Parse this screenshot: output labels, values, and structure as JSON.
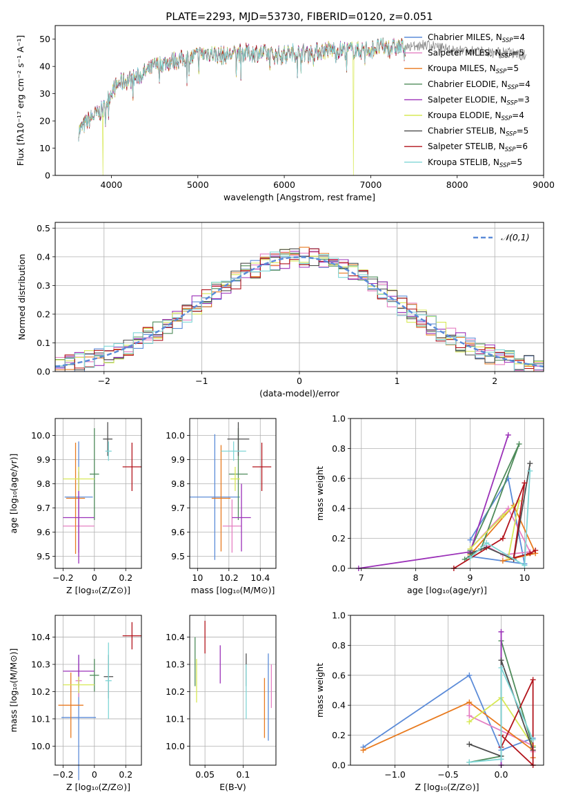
{
  "title": "PLATE=2293, MJD=53730, FIBERID=0120, z=0.051",
  "colors": {
    "chabrier_miles": "#5b8bd8",
    "salpeter_miles": "#e57fc2",
    "kroupa_miles": "#e87a1e",
    "chabrier_elodie": "#4e8b5a",
    "salpeter_elodie": "#9b30b8",
    "kroupa_elodie": "#d7e855",
    "chabrier_stelib": "#4d4d4d",
    "salpeter_stelib": "#b2131b",
    "kroupa_stelib": "#7fd6d6"
  },
  "chart_data": [
    {
      "id": "spectrum",
      "type": "line",
      "title": "PLATE=2293, MJD=53730, FIBERID=0120, z=0.051",
      "xlabel": "wavelength [Angstrom, rest frame]",
      "ylabel": "Flux [fλ10⁻¹⁷ erg cm⁻² s⁻¹ A⁻¹]",
      "xlim": [
        3350,
        9000
      ],
      "ylim": [
        0,
        55
      ],
      "xticks": [
        4000,
        5000,
        6000,
        7000,
        8000,
        9000
      ],
      "yticks": [
        0,
        10,
        20,
        30,
        40,
        50
      ],
      "legend_position": "right",
      "series": [
        {
          "name": "Chabrier MILES, N_SSP=4",
          "label": "Chabrier MILES, N",
          "sub": "SSP",
          "suffix": "=4",
          "color": "#5b8bd8"
        },
        {
          "name": "Salpeter MILES, N_SSP=5",
          "label": "Salpeter MILES, N",
          "sub": "SSP",
          "suffix": "=5",
          "color": "#e57fc2"
        },
        {
          "name": "Kroupa MILES, N_SSP=5",
          "label": "Kroupa MILES, N",
          "sub": "SSP",
          "suffix": "=5",
          "color": "#e87a1e"
        },
        {
          "name": "Chabrier ELODIE, N_SSP=4",
          "label": "Chabrier ELODIE, N",
          "sub": "SSP",
          "suffix": "=4",
          "color": "#4e8b5a"
        },
        {
          "name": "Salpeter ELODIE, N_SSP=3",
          "label": "Salpeter ELODIE, N",
          "sub": "SSP",
          "suffix": "=3",
          "color": "#9b30b8"
        },
        {
          "name": "Kroupa ELODIE, N_SSP=4",
          "label": "Kroupa ELODIE, N",
          "sub": "SSP",
          "suffix": "=4",
          "color": "#d7e855"
        },
        {
          "name": "Chabrier STELIB, N_SSP=5",
          "label": "Chabrier STELIB, N",
          "sub": "SSP",
          "suffix": "=5",
          "color": "#4d4d4d"
        },
        {
          "name": "Salpeter STELIB, N_SSP=6",
          "label": "Salpeter STELIB, N",
          "sub": "SSP",
          "suffix": "=6",
          "color": "#b2131b"
        },
        {
          "name": "Kroupa STELIB, N_SSP=5",
          "label": "Kroupa STELIB, N",
          "sub": "SSP",
          "suffix": "=5",
          "color": "#7fd6d6"
        }
      ],
      "continuum": {
        "x": [
          3620,
          3700,
          3800,
          3900,
          3950,
          4000,
          4100,
          4200,
          4300,
          4400,
          4500,
          4700,
          4900,
          5100,
          5300,
          5500,
          5700,
          5900,
          6100,
          6300,
          6500,
          6700,
          6900,
          7100,
          7300,
          7400
        ],
        "y": [
          16,
          19,
          22,
          24,
          27,
          31,
          34,
          35,
          36,
          38,
          40,
          42,
          43,
          45,
          44,
          45,
          45,
          44,
          45,
          45,
          46,
          46,
          46,
          47,
          47,
          47
        ]
      },
      "continuum_red": {
        "x": [
          7400,
          7600,
          7800,
          8000,
          8200,
          8400,
          8600,
          8800
        ],
        "y": [
          47,
          48,
          47,
          46,
          46,
          45,
          45,
          44
        ]
      },
      "dropouts": [
        {
          "x": 3900,
          "series": 5
        },
        {
          "x": 6800,
          "series": 5
        },
        {
          "x": 7420,
          "series": 7
        }
      ]
    },
    {
      "id": "residuals",
      "type": "histogram",
      "xlabel": "(data-model)/error",
      "ylabel": "Normed distribution",
      "xlim": [
        -2.5,
        2.5
      ],
      "ylim": [
        0,
        0.52
      ],
      "xticks": [
        -2,
        -1,
        0,
        1,
        2
      ],
      "yticks": [
        0.0,
        0.1,
        0.2,
        0.3,
        0.4,
        0.5
      ],
      "bin_width": 0.1,
      "reference": {
        "name": "𝒩(0,1)",
        "color": "#5b8bd8",
        "style": "dashed"
      },
      "legend_position": "top-right"
    },
    {
      "id": "age_vs_Z",
      "type": "scatter",
      "xlabel": "Z [log₁₀(Z/Z⊙)]",
      "ylabel": "age  [log₁₀(age/yr)]",
      "xlim": [
        -0.25,
        0.3
      ],
      "ylim": [
        9.45,
        10.07
      ],
      "xticks": [
        -0.2,
        0.0,
        0.2
      ],
      "yticks": [
        9.5,
        9.6,
        9.7,
        9.8,
        9.9,
        10.0
      ],
      "points": [
        {
          "s": 0,
          "x": -0.1,
          "y": 9.745,
          "xerr": 0.09,
          "yerr": 0.23
        },
        {
          "s": 1,
          "x": -0.1,
          "y": 9.625,
          "xerr": 0.1,
          "yerr": 0.11
        },
        {
          "s": 2,
          "x": -0.12,
          "y": 9.74,
          "xerr": 0.06,
          "yerr": 0.23
        },
        {
          "s": 3,
          "x": 0.0,
          "y": 9.84,
          "xerr": 0.03,
          "yerr": 0.19
        },
        {
          "s": 4,
          "x": -0.1,
          "y": 9.66,
          "xerr": 0.1,
          "yerr": 0.19
        },
        {
          "s": 5,
          "x": -0.1,
          "y": 9.82,
          "xerr": 0.1,
          "yerr": 0.05
        },
        {
          "s": 6,
          "x": 0.085,
          "y": 9.985,
          "xerr": 0.03,
          "yerr": 0.07
        },
        {
          "s": 7,
          "x": 0.24,
          "y": 9.87,
          "xerr": 0.06,
          "yerr": 0.1
        },
        {
          "s": 8,
          "x": 0.09,
          "y": 9.935,
          "xerr": 0.02,
          "yerr": 0.04
        }
      ]
    },
    {
      "id": "age_vs_mass",
      "type": "scatter",
      "xlabel": "mass [log₁₀(M/M⊙)]",
      "ylabel": "",
      "xlim": [
        9.95,
        10.5
      ],
      "ylim": [
        9.45,
        10.07
      ],
      "xticks": [
        10.0,
        10.2,
        10.4
      ],
      "yticks": [
        9.5,
        9.6,
        9.7,
        9.8,
        9.9,
        10.0
      ],
      "points": [
        {
          "s": 0,
          "x": 10.11,
          "y": 9.745,
          "xerr": 0.16,
          "yerr": 0.26
        },
        {
          "s": 1,
          "x": 10.22,
          "y": 9.625,
          "xerr": 0.06,
          "yerr": 0.11
        },
        {
          "s": 2,
          "x": 10.15,
          "y": 9.74,
          "xerr": 0.06,
          "yerr": 0.22
        },
        {
          "s": 3,
          "x": 10.26,
          "y": 9.84,
          "xerr": 0.06,
          "yerr": 0.19
        },
        {
          "s": 4,
          "x": 10.28,
          "y": 9.66,
          "xerr": 0.06,
          "yerr": 0.14
        },
        {
          "s": 5,
          "x": 10.24,
          "y": 9.82,
          "xerr": 0.03,
          "yerr": 0.05
        },
        {
          "s": 6,
          "x": 10.26,
          "y": 9.985,
          "xerr": 0.07,
          "yerr": 0.07
        },
        {
          "s": 7,
          "x": 10.41,
          "y": 9.87,
          "xerr": 0.06,
          "yerr": 0.1
        },
        {
          "s": 8,
          "x": 10.23,
          "y": 9.935,
          "xerr": 0.08,
          "yerr": 0.04
        }
      ]
    },
    {
      "id": "weight_vs_age",
      "type": "line",
      "xlabel": "age  [log₁₀(age/yr)]",
      "ylabel": "mass weight",
      "xlim": [
        6.8,
        10.35
      ],
      "ylim": [
        0,
        1.0
      ],
      "xticks": [
        7,
        8,
        9,
        10
      ],
      "yticks": [
        0.0,
        0.2,
        0.4,
        0.6,
        0.8,
        1.0
      ],
      "series": [
        {
          "s": 0,
          "x": [
            9.0,
            9.7,
            10.0,
            9.0
          ],
          "y": [
            0.19,
            0.6,
            0.03,
            0.08
          ]
        },
        {
          "s": 1,
          "x": [
            9.0,
            9.7,
            10.1,
            9.6,
            9.3
          ],
          "y": [
            0.13,
            0.4,
            0.11,
            0.09,
            0.15
          ]
        },
        {
          "s": 2,
          "x": [
            9.0,
            9.8,
            10.2,
            9.6
          ],
          "y": [
            0.09,
            0.42,
            0.1,
            0.05
          ]
        },
        {
          "s": 3,
          "x": [
            8.9,
            9.2,
            9.9,
            9.0
          ],
          "y": [
            0.06,
            0.13,
            0.83,
            0.12
          ]
        },
        {
          "s": 4,
          "x": [
            6.95,
            9.0,
            9.7
          ],
          "y": [
            0.0,
            0.11,
            0.89
          ]
        },
        {
          "s": 5,
          "x": [
            9.0,
            9.6,
            9.9,
            9.7
          ],
          "y": [
            0.13,
            0.35,
            0.45,
            0.07
          ]
        },
        {
          "s": 6,
          "x": [
            9.0,
            9.3,
            9.8,
            10.1
          ],
          "y": [
            0.1,
            0.14,
            0.06,
            0.7
          ]
        },
        {
          "s": 7,
          "x": [
            8.7,
            9.6,
            10.0,
            9.8,
            10.1,
            10.2
          ],
          "y": [
            0.0,
            0.2,
            0.57,
            0.07,
            0.1,
            0.12
          ]
        },
        {
          "s": 8,
          "x": [
            9.0,
            9.3,
            10.0,
            10.1
          ],
          "y": [
            0.07,
            0.17,
            0.02,
            0.65
          ]
        }
      ]
    },
    {
      "id": "mass_vs_Z",
      "type": "scatter",
      "xlabel": "Z [log₁₀(Z/Z⊙)]",
      "ylabel": "mass [log₁₀(M/M⊙)]",
      "xlim": [
        -0.25,
        0.3
      ],
      "ylim": [
        9.93,
        10.48
      ],
      "xticks": [
        -0.2,
        0.0,
        0.2
      ],
      "yticks": [
        10.0,
        10.1,
        10.2,
        10.3,
        10.4
      ],
      "points": [
        {
          "s": 0,
          "x": -0.1,
          "y": 10.105,
          "xerr": 0.11,
          "yerr": 0.23
        },
        {
          "s": 1,
          "x": -0.1,
          "y": 10.24,
          "xerr": 0.02,
          "yerr": 0.06
        },
        {
          "s": 2,
          "x": -0.15,
          "y": 10.15,
          "xerr": 0.08,
          "yerr": 0.12
        },
        {
          "s": 3,
          "x": 0.0,
          "y": 10.26,
          "xerr": 0.03,
          "yerr": 0.06
        },
        {
          "s": 4,
          "x": -0.1,
          "y": 10.275,
          "xerr": 0.1,
          "yerr": 0.06
        },
        {
          "s": 5,
          "x": -0.1,
          "y": 10.225,
          "xerr": 0.1,
          "yerr": 0.03
        },
        {
          "s": 6,
          "x": 0.09,
          "y": 10.255,
          "xerr": 0.03,
          "yerr": 0.08
        },
        {
          "s": 7,
          "x": 0.24,
          "y": 10.405,
          "xerr": 0.06,
          "yerr": 0.05
        },
        {
          "s": 8,
          "x": 0.09,
          "y": 10.24,
          "xerr": 0.02,
          "yerr": 0.14
        }
      ]
    },
    {
      "id": "mass_vs_ebv",
      "type": "scatter",
      "xlabel": "E(B-V)",
      "ylabel": "",
      "xlim": [
        0.03,
        0.143
      ],
      "ylim": [
        9.93,
        10.48
      ],
      "xticks": [
        0.05,
        0.1
      ],
      "yticks": [
        10.0,
        10.1,
        10.2,
        10.3,
        10.4
      ],
      "points": [
        {
          "s": 0,
          "x": 0.133,
          "y": 10.18,
          "yerr": 0.16
        },
        {
          "s": 1,
          "x": 0.137,
          "y": 10.22,
          "yerr": 0.08
        },
        {
          "s": 2,
          "x": 0.128,
          "y": 10.14,
          "yerr": 0.11
        },
        {
          "s": 3,
          "x": 0.037,
          "y": 10.31,
          "yerr": 0.09
        },
        {
          "s": 4,
          "x": 0.07,
          "y": 10.3,
          "yerr": 0.07
        },
        {
          "s": 5,
          "x": 0.039,
          "y": 10.24,
          "yerr": 0.08
        },
        {
          "s": 6,
          "x": 0.104,
          "y": 10.28,
          "yerr": 0.06
        },
        {
          "s": 7,
          "x": 0.05,
          "y": 10.4,
          "yerr": 0.06
        },
        {
          "s": 8,
          "x": 0.104,
          "y": 10.2,
          "yerr": 0.1
        }
      ]
    },
    {
      "id": "weight_vs_Z",
      "type": "line",
      "xlabel": "Z [log₁₀(Z/Z⊙)]",
      "ylabel": "mass weight",
      "xlim": [
        -1.42,
        0.4
      ],
      "ylim": [
        0,
        1.0
      ],
      "xticks": [
        -1.0,
        -0.5,
        0.0
      ],
      "yticks": [
        0.0,
        0.2,
        0.4,
        0.6,
        0.8,
        1.0
      ],
      "series": [
        {
          "s": 0,
          "x": [
            -1.3,
            -0.3,
            0.0,
            0.3
          ],
          "y": [
            0.12,
            0.6,
            0.1,
            0.18
          ]
        },
        {
          "s": 1,
          "x": [
            -0.3,
            -0.3,
            0.3,
            0.3
          ],
          "y": [
            0.4,
            0.33,
            0.13,
            0.09
          ]
        },
        {
          "s": 2,
          "x": [
            -1.3,
            -0.3,
            0.3,
            0.3
          ],
          "y": [
            0.1,
            0.42,
            0.1,
            0.05
          ]
        },
        {
          "s": 3,
          "x": [
            -0.3,
            0.0,
            0.0,
            0.3
          ],
          "y": [
            0.02,
            0.06,
            0.83,
            0.12
          ]
        },
        {
          "s": 4,
          "x": [
            0.0,
            0.0
          ],
          "y": [
            0.0,
            0.89
          ]
        },
        {
          "s": 5,
          "x": [
            -0.3,
            0.0,
            0.3
          ],
          "y": [
            0.29,
            0.45,
            0.13
          ]
        },
        {
          "s": 6,
          "x": [
            -0.3,
            0.0,
            0.0,
            0.3
          ],
          "y": [
            0.14,
            0.06,
            0.7,
            0.1
          ]
        },
        {
          "s": 7,
          "x": [
            0.0,
            0.3,
            0.3,
            0.0
          ],
          "y": [
            0.2,
            0.0,
            0.57,
            0.12
          ]
        },
        {
          "s": 8,
          "x": [
            -0.3,
            0.0,
            0.0,
            0.3
          ],
          "y": [
            0.02,
            0.04,
            0.65,
            0.17
          ]
        }
      ]
    }
  ]
}
